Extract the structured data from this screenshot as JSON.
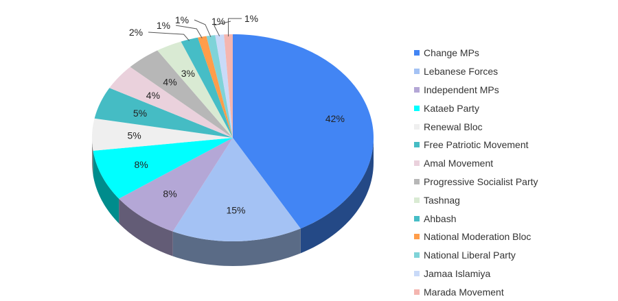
{
  "chart_data": {
    "type": "pie",
    "style": "3d",
    "start": "top, clockwise",
    "legend_position": "right",
    "slices": [
      {
        "name": "Change MPs",
        "value": 42,
        "label": "42%",
        "color": "#4285f4"
      },
      {
        "name": "Lebanese Forces",
        "value": 15,
        "label": "15%",
        "color": "#a4c2f4"
      },
      {
        "name": "Independent MPs",
        "value": 8,
        "label": "8%",
        "color": "#b4a7d6"
      },
      {
        "name": "Kataeb Party",
        "value": 8,
        "label": "8%",
        "color": "#00ffff"
      },
      {
        "name": "Renewal Bloc",
        "value": 5,
        "label": "5%",
        "color": "#efefef"
      },
      {
        "name": "Free Patriotic Movement",
        "value": 5,
        "label": "5%",
        "color": "#45bcc4"
      },
      {
        "name": "Amal Movement",
        "value": 4,
        "label": "4%",
        "color": "#ead1dc"
      },
      {
        "name": "Progressive Socialist Party",
        "value": 4,
        "label": "4%",
        "color": "#b7b7b7"
      },
      {
        "name": "Tashnag",
        "value": 3,
        "label": "3%",
        "color": "#d9ead3"
      },
      {
        "name": "Ahbash",
        "value": 2,
        "label": "2%",
        "color": "#46bdc6"
      },
      {
        "name": "National Moderation Bloc",
        "value": 1,
        "label": "1%",
        "color": "#ff9d4a"
      },
      {
        "name": "National Liberal Party",
        "value": 1,
        "label": "1%",
        "color": "#7fd3d8"
      },
      {
        "name": "Jamaa Islamiya",
        "value": 1,
        "label": "1%",
        "color": "#c9daf8"
      },
      {
        "name": "Marada Movement",
        "value": 1,
        "label": "1%",
        "color": "#f4b6b0"
      }
    ]
  }
}
